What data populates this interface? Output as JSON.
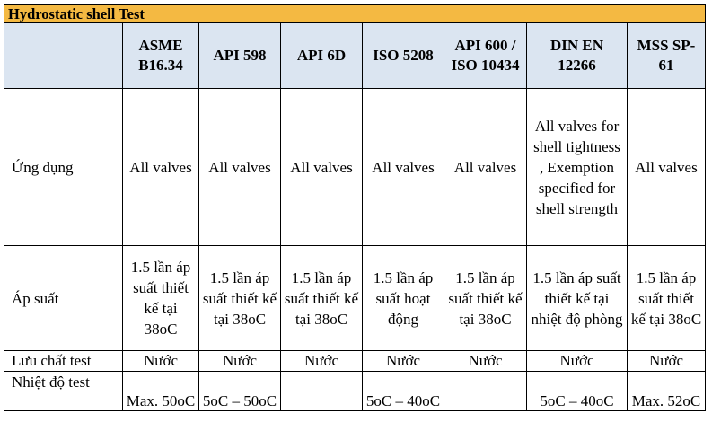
{
  "title": "Hydrostatic shell Test",
  "columns": [
    "ASME B16.34",
    "API 598",
    "API 6D",
    "ISO 5208",
    "API 600 / ISO 10434",
    "DIN EN 12266",
    "MSS SP-61"
  ],
  "rows": [
    {
      "label": "Ứng dụng",
      "cells": [
        "All valves",
        "All valves",
        "All valves",
        "All valves",
        "All valves",
        "All valves for shell tightness , Exemption specified for shell strength",
        "All valves"
      ]
    },
    {
      "label": "Áp suất",
      "cells": [
        "1.5 lần áp suất thiết kế tại 38oC",
        "1.5 lần áp suất thiết kế tại 38oC",
        "1.5 lần áp suất thiết kế tại 38oC",
        "1.5 lần áp suất hoạt động",
        "1.5 lần áp suất thiết kế tại 38oC",
        "1.5 lần áp suất thiết kế tại nhiệt độ phòng",
        "1.5 lần áp suất thiết kế tại 38oC"
      ]
    },
    {
      "label": "Lưu chất test",
      "cells": [
        "Nước",
        "Nước",
        "Nước",
        "Nước",
        "Nước",
        "Nước",
        "Nước"
      ]
    },
    {
      "label": "Nhiệt độ test",
      "cells": [
        "Max. 50oC",
        "5oC – 50oC",
        "",
        "5oC – 40oC",
        "",
        "5oC – 40oC",
        "Max. 52oC"
      ]
    }
  ]
}
